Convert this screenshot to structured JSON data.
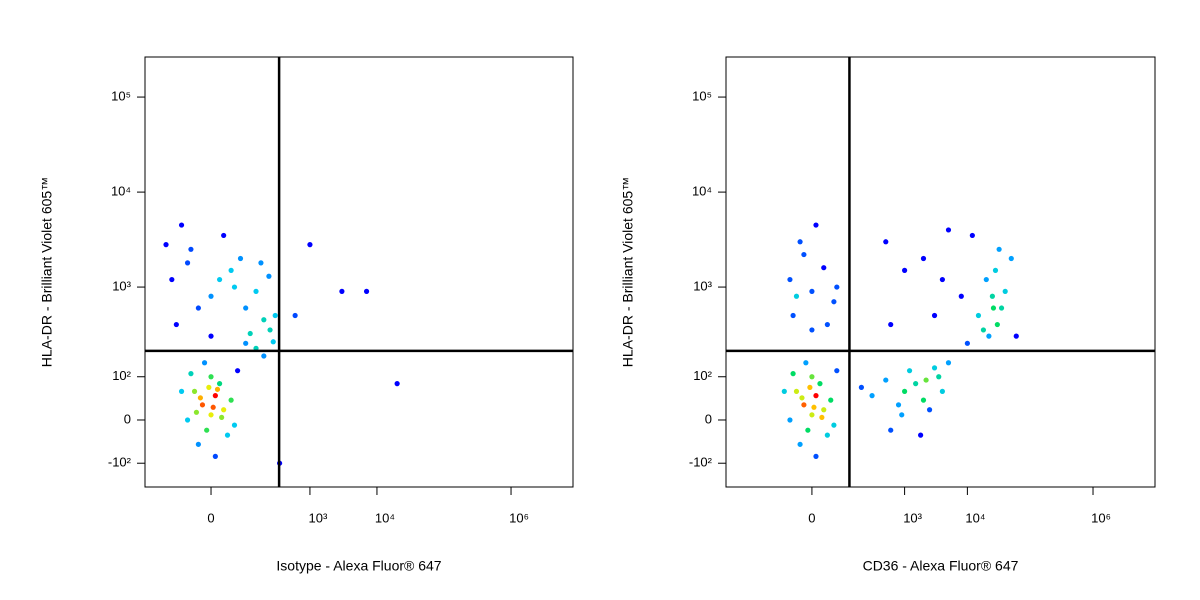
{
  "chart_data": [
    {
      "type": "scatter",
      "x_label": "Isotype - Alexa Fluor® 647",
      "y_label": "HLA-DR - Brilliant Violet 605™",
      "xlim": [
        -320,
        8400000
      ],
      "ylim": [
        -195,
        264000
      ],
      "scale": "biexponential",
      "xticks": [
        0,
        {
          "value": 1000,
          "label": "10³"
        },
        {
          "value": 10000,
          "label": "10⁴"
        },
        {
          "value": 1000000,
          "label": "10⁶"
        }
      ],
      "yticks": [
        {
          "value": -100,
          "label": "-10²"
        },
        0,
        {
          "value": 100,
          "label": "10²"
        },
        {
          "value": 1000,
          "label": "10³"
        },
        {
          "value": 10000,
          "label": "10⁴"
        },
        {
          "value": 100000,
          "label": "10⁵"
        }
      ],
      "gates": {
        "x": 344,
        "y": 206
      },
      "points": [
        [
          -20,
          30
        ],
        [
          10,
          50
        ],
        [
          0,
          10
        ],
        [
          -40,
          60
        ],
        [
          30,
          20
        ],
        [
          -10,
          -20
        ],
        [
          20,
          80
        ],
        [
          -60,
          0
        ],
        [
          50,
          40
        ],
        [
          0,
          100
        ],
        [
          -30,
          -50
        ],
        [
          40,
          -30
        ],
        [
          -80,
          60
        ],
        [
          70,
          120
        ],
        [
          10,
          -80
        ],
        [
          -15,
          150
        ],
        [
          25,
          5
        ],
        [
          -5,
          70
        ],
        [
          60,
          -10
        ],
        [
          -50,
          110
        ],
        [
          5,
          25
        ],
        [
          -25,
          45
        ],
        [
          15,
          65
        ],
        [
          -35,
          15
        ],
        [
          -100,
          400
        ],
        [
          0,
          800
        ],
        [
          50,
          1500
        ],
        [
          -50,
          2500
        ],
        [
          100,
          600
        ],
        [
          200,
          450
        ],
        [
          -120,
          1200
        ],
        [
          30,
          3500
        ],
        [
          150,
          900
        ],
        [
          250,
          350
        ],
        [
          -80,
          4500
        ],
        [
          80,
          2000
        ],
        [
          0,
          300
        ],
        [
          180,
          1800
        ],
        [
          -30,
          600
        ],
        [
          120,
          320
        ],
        [
          300,
          500
        ],
        [
          -150,
          2800
        ],
        [
          60,
          1000
        ],
        [
          240,
          1300
        ],
        [
          -60,
          1800
        ],
        [
          20,
          1200
        ],
        [
          100,
          250
        ],
        [
          200,
          180
        ],
        [
          150,
          220
        ],
        [
          280,
          260
        ],
        [
          1000,
          2800
        ],
        [
          3000,
          900
        ],
        [
          7000,
          900
        ],
        [
          600,
          500
        ],
        [
          20000,
          80
        ],
        [
          350,
          -100
        ]
      ]
    },
    {
      "type": "scatter",
      "x_label": "CD36 - Alexa Fluor® 647",
      "y_label": "HLA-DR - Brilliant Violet 605™",
      "xlim": [
        -780,
        9700000
      ],
      "ylim": [
        -195,
        264000
      ],
      "scale": "biexponential",
      "xticks": [
        0,
        {
          "value": 1000,
          "label": "10³"
        },
        {
          "value": 10000,
          "label": "10⁴"
        },
        {
          "value": 1000000,
          "label": "10⁶"
        }
      ],
      "yticks": [
        {
          "value": -100,
          "label": "-10²"
        },
        0,
        {
          "value": 100,
          "label": "10²"
        },
        {
          "value": 1000,
          "label": "10³"
        },
        {
          "value": 10000,
          "label": "10⁴"
        },
        {
          "value": 100000,
          "label": "10⁵"
        }
      ],
      "gates": {
        "x": 124,
        "y": 206
      },
      "points": [
        [
          -20,
          30
        ],
        [
          10,
          50
        ],
        [
          0,
          10
        ],
        [
          -40,
          60
        ],
        [
          30,
          20
        ],
        [
          -10,
          -20
        ],
        [
          20,
          80
        ],
        [
          -60,
          0
        ],
        [
          50,
          40
        ],
        [
          0,
          100
        ],
        [
          -30,
          -50
        ],
        [
          40,
          -30
        ],
        [
          -80,
          60
        ],
        [
          70,
          120
        ],
        [
          10,
          -80
        ],
        [
          -15,
          150
        ],
        [
          25,
          5
        ],
        [
          -5,
          70
        ],
        [
          60,
          -10
        ],
        [
          -50,
          110
        ],
        [
          5,
          25
        ],
        [
          -25,
          45
        ],
        [
          -50,
          500
        ],
        [
          0,
          900
        ],
        [
          30,
          1600
        ],
        [
          -30,
          3000
        ],
        [
          60,
          700
        ],
        [
          -60,
          1200
        ],
        [
          10,
          4500
        ],
        [
          40,
          400
        ],
        [
          -20,
          2200
        ],
        [
          70,
          1000
        ],
        [
          0,
          350
        ],
        [
          -40,
          800
        ],
        [
          300,
          50
        ],
        [
          800,
          30
        ],
        [
          1500,
          80
        ],
        [
          2500,
          20
        ],
        [
          4000,
          60
        ],
        [
          600,
          -20
        ],
        [
          1200,
          120
        ],
        [
          2000,
          40
        ],
        [
          3500,
          100
        ],
        [
          500,
          90
        ],
        [
          900,
          10
        ],
        [
          1800,
          -30
        ],
        [
          3000,
          130
        ],
        [
          200,
          70
        ],
        [
          5000,
          150
        ],
        [
          1000,
          60
        ],
        [
          2200,
          90
        ],
        [
          15000,
          500
        ],
        [
          25000,
          800
        ],
        [
          30000,
          400
        ],
        [
          20000,
          1200
        ],
        [
          35000,
          600
        ],
        [
          18000,
          350
        ],
        [
          28000,
          1500
        ],
        [
          40000,
          900
        ],
        [
          22000,
          300
        ],
        [
          32000,
          2500
        ],
        [
          26000,
          600
        ],
        [
          500,
          3000
        ],
        [
          2000,
          2000
        ],
        [
          5000,
          4000
        ],
        [
          1000,
          1500
        ],
        [
          8000,
          800
        ],
        [
          3000,
          500
        ],
        [
          12000,
          3500
        ],
        [
          600,
          400
        ],
        [
          4000,
          1200
        ],
        [
          50000,
          2000
        ],
        [
          60000,
          300
        ],
        [
          10000,
          250
        ]
      ]
    }
  ]
}
